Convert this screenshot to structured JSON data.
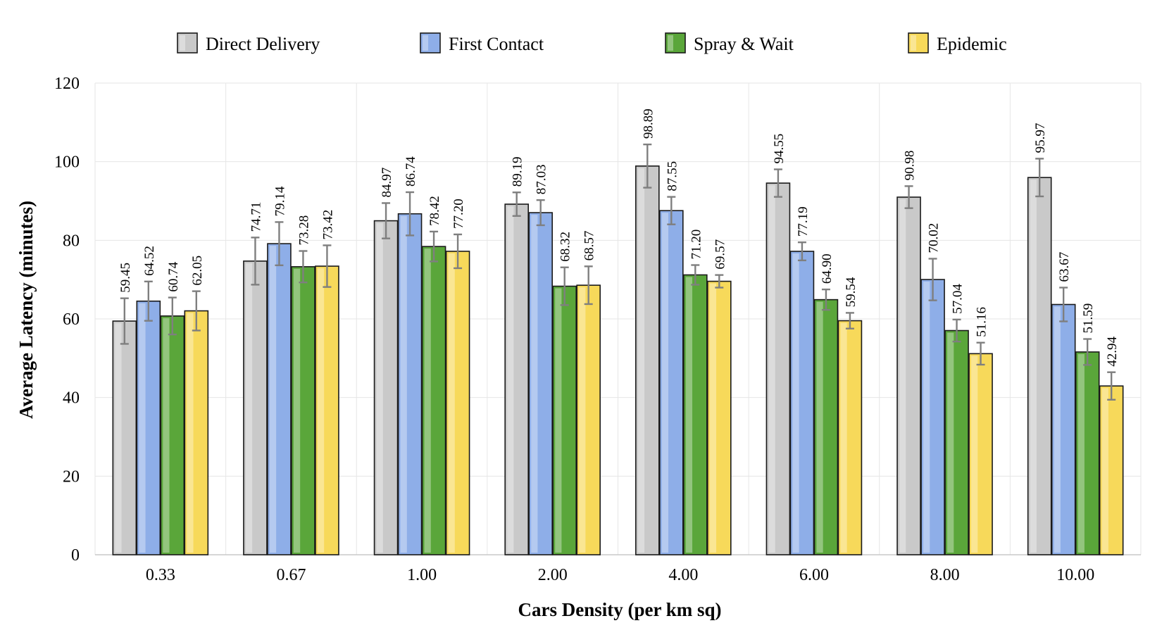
{
  "chart_data": {
    "type": "bar",
    "title": "",
    "xlabel": "Cars Density (per km sq)",
    "ylabel": "Average Latency (minutes)",
    "ylim": [
      0,
      120
    ],
    "yticks": [
      "0",
      "20",
      "40",
      "60",
      "80",
      "100",
      "120"
    ],
    "grid": true,
    "legend_position": "top",
    "categories": [
      "0.33",
      "0.67",
      "1.00",
      "2.00",
      "4.00",
      "6.00",
      "8.00",
      "10.00"
    ],
    "series": [
      {
        "name": "Direct Delivery",
        "color": "#c9c9c9",
        "values": [
          59.45,
          74.71,
          84.97,
          89.19,
          98.89,
          94.55,
          90.98,
          95.97
        ],
        "labels": [
          "59.45",
          "74.71",
          "84.97",
          "89.19",
          "98.89",
          "94.55",
          "90.98",
          "95.97"
        ],
        "error": [
          5.8,
          6.0,
          4.5,
          3.0,
          5.5,
          3.5,
          2.8,
          4.8
        ]
      },
      {
        "name": "First Contact",
        "color": "#8eaee8",
        "values": [
          64.52,
          79.14,
          86.74,
          87.03,
          87.55,
          77.19,
          70.02,
          63.67
        ],
        "labels": [
          "64.52",
          "79.14",
          "86.74",
          "87.03",
          "87.55",
          "77.19",
          "70.02",
          "63.67"
        ],
        "error": [
          5.0,
          5.5,
          5.5,
          3.2,
          3.5,
          2.3,
          5.3,
          4.3
        ]
      },
      {
        "name": "Spray & Wait",
        "color": "#5aa63a",
        "values": [
          60.74,
          73.28,
          78.42,
          68.32,
          71.2,
          64.9,
          57.04,
          51.59
        ],
        "labels": [
          "60.74",
          "73.28",
          "78.42",
          "68.32",
          "71.20",
          "64.90",
          "57.04",
          "51.59"
        ],
        "error": [
          4.7,
          4.0,
          3.8,
          4.8,
          2.5,
          2.6,
          2.8,
          3.3
        ]
      },
      {
        "name": "Epidemic",
        "color": "#f7d95a",
        "values": [
          62.05,
          73.42,
          77.2,
          68.57,
          69.57,
          59.54,
          51.16,
          42.94
        ],
        "labels": [
          "62.05",
          "73.42",
          "77.20",
          "68.57",
          "69.57",
          "59.54",
          "51.16",
          "42.94"
        ],
        "error": [
          5.0,
          5.3,
          4.3,
          4.8,
          1.6,
          2.0,
          2.8,
          3.5
        ]
      }
    ]
  }
}
